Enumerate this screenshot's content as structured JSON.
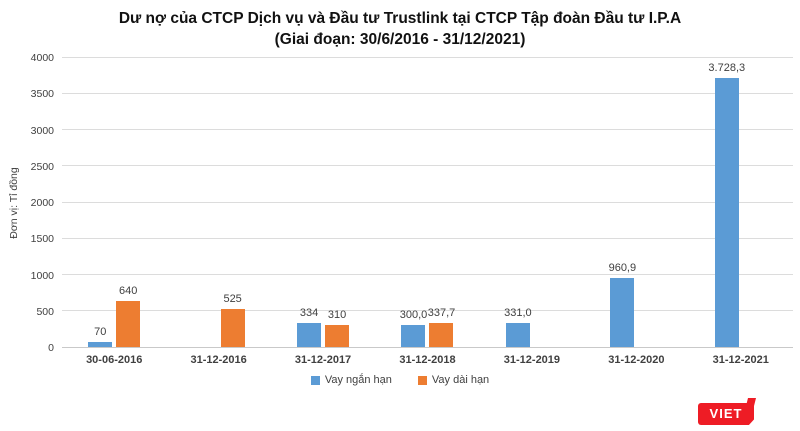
{
  "chart_data": {
    "type": "bar",
    "title": "Dư nợ của CTCP Dịch vụ và Đầu tư Trustlink tại CTCP Tập đoàn Đầu tư I.P.A",
    "subtitle": "(Giai đoạn: 30/6/2016 - 31/12/2021)",
    "categories": [
      "30-06-2016",
      "31-12-2016",
      "31-12-2017",
      "31-12-2018",
      "31-12-2019",
      "31-12-2020",
      "31-12-2021"
    ],
    "series": [
      {
        "name": "Vay ngắn hạn",
        "color": "#5B9BD5",
        "values": [
          70,
          null,
          334,
          300.0,
          331.0,
          960.9,
          3728.3
        ],
        "value_labels": [
          "70",
          "",
          "334",
          "300,0",
          "331,0",
          "960,9",
          "3.728,3"
        ]
      },
      {
        "name": "Vay dài hạn",
        "color": "#ED7D31",
        "values": [
          640,
          525,
          310,
          337.7,
          null,
          null,
          null
        ],
        "value_labels": [
          "640",
          "525",
          "310",
          "337,7",
          "",
          "",
          ""
        ]
      }
    ],
    "xlabel": "",
    "ylabel": "Đơn vị: Tỉ đồng",
    "ylim": [
      0,
      4000
    ],
    "yticks": [
      0,
      500,
      1000,
      1500,
      2000,
      2500,
      3000,
      3500,
      4000
    ],
    "grid": true,
    "legend_position": "bottom"
  },
  "colors": {
    "gridline": "#dcdcdc",
    "axis_line": "#c9c9c9",
    "label_text": "#404040"
  },
  "brand": {
    "logo_text": "VIET",
    "logo_color": "#EE1C25"
  }
}
